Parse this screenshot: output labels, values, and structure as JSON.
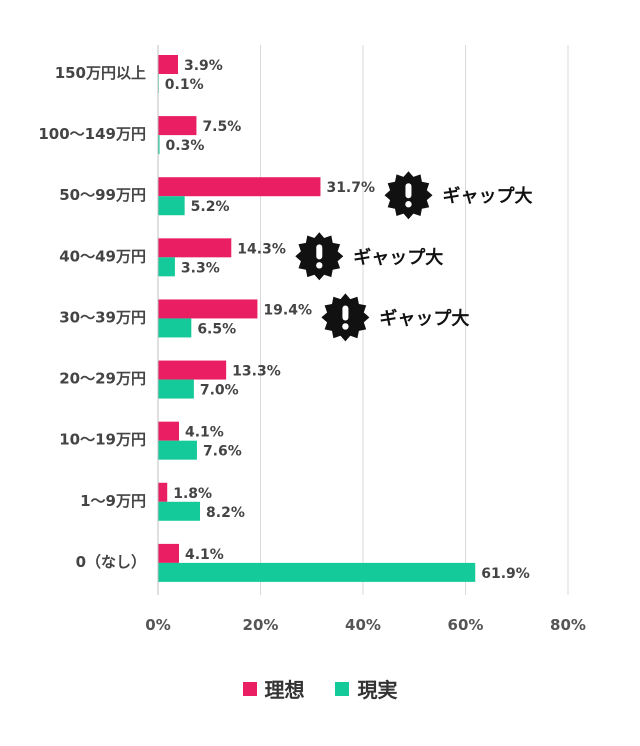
{
  "chart_data": {
    "type": "bar",
    "orientation": "horizontal",
    "categories": [
      "150万円以上",
      "100〜149万円",
      "50〜99万円",
      "40〜49万円",
      "30〜39万円",
      "20〜29万円",
      "10〜19万円",
      "1〜9万円",
      "0（なし）"
    ],
    "series": [
      {
        "name": "理想",
        "color": "#e91e63",
        "values": [
          3.9,
          7.5,
          31.7,
          14.3,
          19.4,
          13.3,
          4.1,
          1.8,
          4.1
        ]
      },
      {
        "name": "現実",
        "color": "#14c99a",
        "values": [
          0.1,
          0.3,
          5.2,
          3.3,
          6.5,
          7.0,
          7.6,
          8.2,
          61.9
        ]
      }
    ],
    "xlim": [
      0,
      80
    ],
    "xticks": [
      "0%",
      "20%",
      "40%",
      "60%",
      "80%"
    ],
    "value_suffix": "%",
    "grid": true,
    "legend_position": "bottom",
    "annotations": [
      {
        "category": "50〜99万円",
        "text": "ギャップ大",
        "icon": "exclamation-badge-icon"
      },
      {
        "category": "40〜49万円",
        "text": "ギャップ大",
        "icon": "exclamation-badge-icon"
      },
      {
        "category": "30〜39万円",
        "text": "ギャップ大",
        "icon": "exclamation-badge-icon"
      }
    ]
  },
  "legend": {
    "items": [
      {
        "label": "理想",
        "color": "#e91e63"
      },
      {
        "label": "現実",
        "color": "#14c99a"
      }
    ]
  }
}
